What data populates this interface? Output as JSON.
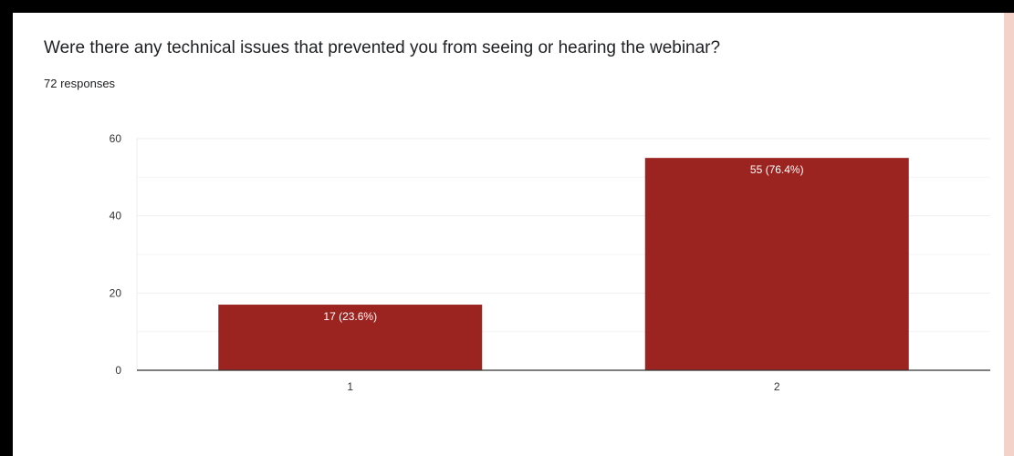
{
  "question": "Were there any technical issues that prevented you from seeing or hearing the webinar?",
  "responses": "72 responses",
  "colors": {
    "bar": "#9c2420",
    "frame": "#000000",
    "card": "#ffffff",
    "gridline": "#eeeeee",
    "axis": "#333333",
    "right_strip": "#f3d2c9"
  },
  "chart_data": {
    "type": "bar",
    "categories": [
      "1",
      "2"
    ],
    "values": [
      17,
      55
    ],
    "data_labels": [
      "17 (23.6%)",
      "55 (76.4%)"
    ],
    "y_ticks": [
      "0",
      "20",
      "40",
      "60"
    ],
    "ylim": [
      0,
      60
    ],
    "grid": true,
    "legend": "none"
  }
}
